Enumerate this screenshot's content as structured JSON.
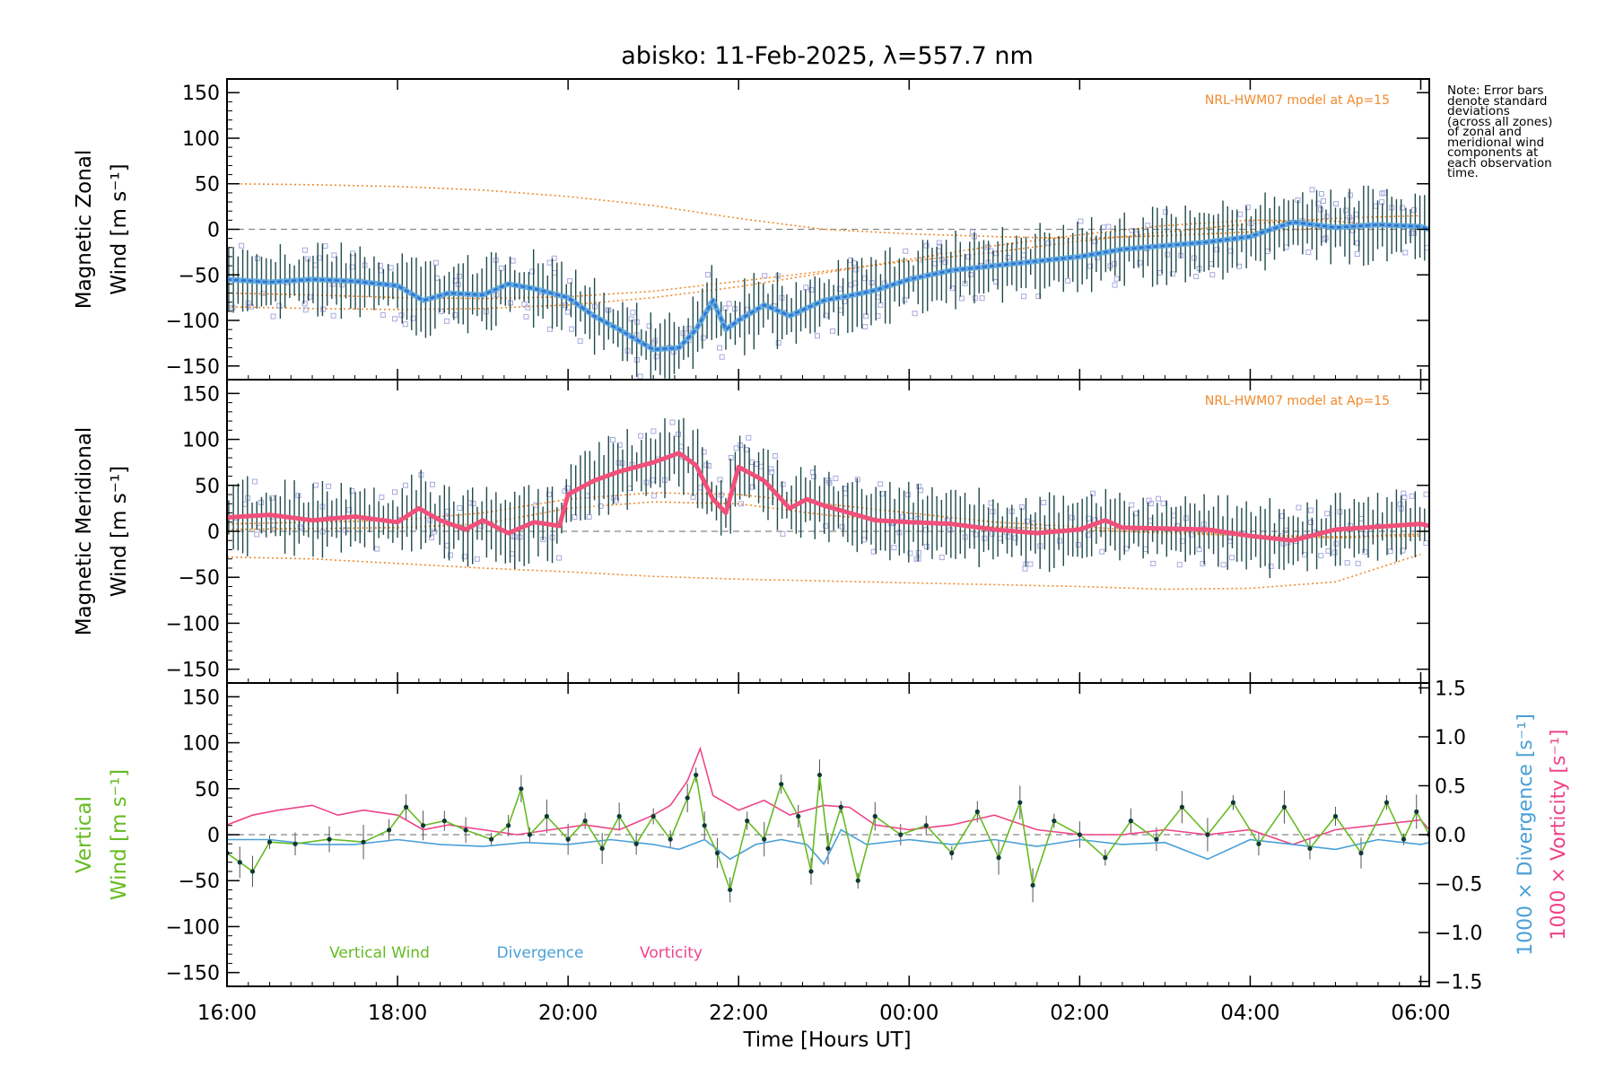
{
  "title": "abisko: 11-Feb-2025, λ=557.7 nm",
  "xlabel": "Time [Hours UT]",
  "x_ticks": [
    "16:00",
    "18:00",
    "20:00",
    "22:00",
    "00:00",
    "02:00",
    "04:00",
    "06:00"
  ],
  "model_label": "NRL-HWM07 model at Ap=15",
  "note_lines": [
    "Note: Error bars",
    "denote standard",
    "deviations",
    "(across all zones)",
    "of zonal and",
    "meridional wind",
    "components at",
    "each observation",
    "time."
  ],
  "colors": {
    "zonal_mean": "#2f6fd8",
    "zonal_band": "#5aa8dc",
    "meridional_mean": "#f0507a",
    "model": "#f08a2c",
    "errorbar": "#1e4a4a",
    "scatter": "#a8a8e0",
    "vertical": "#66bb22",
    "divergence": "#4aa0d8",
    "vorticity": "#ee4488",
    "points": "#103838"
  },
  "chart_data": [
    {
      "type": "line",
      "panel": "zonal",
      "ylabel_line1": "Magnetic Zonal",
      "ylabel_line2": "Wind [m s⁻¹]",
      "ylim": [
        -165,
        165
      ],
      "y_ticks": [
        150,
        100,
        50,
        0,
        -50,
        -100,
        -150
      ],
      "xlim_hours": [
        16,
        30.1
      ],
      "series": [
        {
          "role": "mean",
          "x": [
            16,
            16.5,
            17,
            17.5,
            18,
            18.3,
            18.6,
            19,
            19.3,
            19.6,
            20,
            20.3,
            20.6,
            21,
            21.3,
            21.5,
            21.7,
            21.85,
            22,
            22.3,
            22.6,
            23,
            23.3,
            23.6,
            24,
            24.5,
            25,
            25.5,
            26,
            26.5,
            27,
            27.5,
            28,
            28.5,
            29,
            29.5,
            30,
            30.1
          ],
          "values": [
            -55,
            -58,
            -55,
            -57,
            -62,
            -78,
            -70,
            -72,
            -60,
            -65,
            -75,
            -95,
            -110,
            -132,
            -130,
            -110,
            -78,
            -110,
            -100,
            -83,
            -95,
            -78,
            -73,
            -67,
            -55,
            -45,
            -40,
            -35,
            -30,
            -22,
            -18,
            -14,
            -8,
            8,
            2,
            5,
            3,
            0
          ]
        },
        {
          "role": "model",
          "x": [
            16,
            17,
            18,
            19,
            20,
            21,
            22,
            23,
            24,
            25,
            26,
            27,
            28,
            29,
            30
          ],
          "values": [
            50,
            49,
            47,
            43,
            36,
            26,
            12,
            0,
            -5,
            -8,
            -10,
            -7,
            -3,
            2,
            5
          ]
        },
        {
          "role": "model",
          "x": [
            16,
            17,
            18,
            19,
            20,
            21,
            22,
            23,
            24,
            25,
            26,
            27,
            28,
            29,
            30
          ],
          "values": [
            -70,
            -72,
            -75,
            -76,
            -74,
            -68,
            -57,
            -46,
            -35,
            -25,
            -13,
            -3,
            6,
            12,
            15
          ]
        },
        {
          "role": "model",
          "x": [
            16,
            17,
            18,
            19,
            20,
            21,
            22,
            23,
            24,
            25,
            26,
            27,
            28,
            29,
            30
          ],
          "values": [
            -85,
            -87,
            -88,
            -87,
            -83,
            -75,
            -63,
            -48,
            -33,
            -18,
            -6,
            4,
            10,
            9,
            0
          ]
        }
      ]
    },
    {
      "type": "line",
      "panel": "meridional",
      "ylabel_line1": "Magnetic Meridional",
      "ylabel_line2": "Wind [m s⁻¹]",
      "ylim": [
        -165,
        165
      ],
      "y_ticks": [
        150,
        100,
        50,
        0,
        -50,
        -100,
        -150
      ],
      "xlim_hours": [
        16,
        30.1
      ],
      "series": [
        {
          "role": "mean",
          "x": [
            16,
            16.5,
            17,
            17.5,
            18,
            18.25,
            18.5,
            18.8,
            19,
            19.3,
            19.6,
            19.9,
            20,
            20.3,
            20.6,
            21,
            21.3,
            21.5,
            21.7,
            21.85,
            22,
            22.3,
            22.6,
            22.8,
            23,
            23.3,
            23.6,
            24,
            24.5,
            25,
            25.5,
            26,
            26.3,
            26.5,
            27,
            27.5,
            28,
            28.5,
            29,
            29.5,
            30,
            30.1
          ],
          "values": [
            15,
            18,
            12,
            16,
            10,
            25,
            12,
            2,
            12,
            -2,
            10,
            6,
            40,
            55,
            65,
            75,
            85,
            72,
            35,
            20,
            70,
            55,
            25,
            35,
            28,
            20,
            12,
            10,
            8,
            2,
            -2,
            2,
            12,
            4,
            3,
            2,
            -5,
            -10,
            2,
            5,
            8,
            6
          ]
        },
        {
          "role": "model",
          "x": [
            16,
            17,
            18,
            19,
            20,
            21,
            22,
            23,
            24,
            25,
            26,
            27,
            28,
            29,
            30
          ],
          "values": [
            -28,
            -30,
            -35,
            -40,
            -44,
            -49,
            -52,
            -54,
            -56,
            -58,
            -60,
            -63,
            -62,
            -55,
            -25
          ]
        },
        {
          "role": "model",
          "x": [
            16,
            17,
            18,
            19,
            20,
            21,
            22,
            23,
            24,
            25,
            26,
            27,
            28,
            29,
            30
          ],
          "values": [
            2,
            3,
            4,
            8,
            25,
            32,
            30,
            18,
            10,
            5,
            2,
            -2,
            -5,
            -7,
            -5
          ]
        },
        {
          "role": "model",
          "x": [
            16,
            17,
            18,
            19,
            20,
            21,
            22,
            23,
            24,
            25,
            26,
            27,
            28,
            29,
            30
          ],
          "values": [
            8,
            10,
            12,
            20,
            35,
            42,
            40,
            30,
            20,
            10,
            5,
            0,
            -4,
            -6,
            -3
          ]
        }
      ]
    },
    {
      "type": "line",
      "panel": "vertical",
      "ylabel_line1": "Vertical",
      "ylabel_line2": "Wind [m s⁻¹]",
      "ylim": [
        -165,
        165
      ],
      "y_ticks": [
        150,
        100,
        50,
        0,
        -50,
        -100,
        -150
      ],
      "y2lim": [
        -1.55,
        1.55
      ],
      "y2_ticks": [
        1.5,
        1.0,
        0.5,
        0.0,
        -0.5,
        -1.0,
        -1.5
      ],
      "y2_ticklabels": [
        "1.5",
        "1.0",
        "0.5",
        "0.0",
        "−0.5",
        "−1.0",
        "−1.5"
      ],
      "y2label_1": "1000 × Divergence [s⁻¹]",
      "y2label_2": "1000 × Vorticity [s⁻¹]",
      "xlim_hours": [
        16,
        30.1
      ],
      "series": [
        {
          "name": "Vertical Wind",
          "axis": "left",
          "x": [
            16,
            16.15,
            16.3,
            16.5,
            16.8,
            17.2,
            17.6,
            17.9,
            18.1,
            18.3,
            18.55,
            18.8,
            19.1,
            19.3,
            19.45,
            19.55,
            19.75,
            20,
            20.2,
            20.4,
            20.6,
            20.8,
            21,
            21.2,
            21.4,
            21.5,
            21.6,
            21.75,
            21.9,
            22.1,
            22.3,
            22.5,
            22.7,
            22.85,
            22.95,
            23.05,
            23.2,
            23.4,
            23.6,
            23.9,
            24.2,
            24.5,
            24.8,
            25.05,
            25.3,
            25.45,
            25.7,
            26,
            26.3,
            26.6,
            26.9,
            27.2,
            27.5,
            27.8,
            28.1,
            28.4,
            28.7,
            29,
            29.3,
            29.6,
            29.8,
            29.95,
            30.1
          ],
          "values": [
            -20,
            -30,
            -40,
            -8,
            -10,
            -5,
            -8,
            5,
            30,
            10,
            15,
            5,
            -5,
            10,
            50,
            0,
            20,
            -5,
            15,
            -15,
            20,
            -10,
            20,
            -5,
            40,
            65,
            10,
            -20,
            -60,
            15,
            -5,
            55,
            20,
            -40,
            65,
            -15,
            30,
            -50,
            20,
            0,
            10,
            -20,
            25,
            -25,
            35,
            -55,
            15,
            0,
            -25,
            15,
            -5,
            30,
            0,
            35,
            -10,
            30,
            -15,
            20,
            -20,
            35,
            -5,
            25,
            0
          ]
        },
        {
          "name": "Divergence",
          "axis": "right",
          "x": [
            16,
            16.5,
            17,
            17.5,
            18,
            18.5,
            19,
            19.5,
            20,
            20.5,
            21,
            21.3,
            21.6,
            21.9,
            22.2,
            22.5,
            22.8,
            23,
            23.2,
            23.5,
            24,
            24.5,
            25,
            25.5,
            26,
            26.5,
            27,
            27.5,
            28,
            28.5,
            29,
            29.5,
            30,
            30.1
          ],
          "values": [
            -0.05,
            -0.05,
            -0.1,
            -0.1,
            -0.05,
            -0.1,
            -0.12,
            -0.08,
            -0.1,
            -0.05,
            -0.1,
            -0.15,
            -0.05,
            -0.25,
            -0.1,
            -0.05,
            -0.1,
            -0.3,
            0.05,
            -0.1,
            -0.05,
            -0.1,
            -0.05,
            -0.12,
            -0.05,
            -0.1,
            -0.08,
            -0.25,
            -0.05,
            -0.1,
            -0.15,
            -0.05,
            -0.1,
            -0.08
          ]
        },
        {
          "name": "Vorticity",
          "axis": "right",
          "x": [
            16,
            16.3,
            16.6,
            17,
            17.3,
            17.6,
            18,
            18.3,
            18.6,
            19,
            19.4,
            19.8,
            20.2,
            20.6,
            21,
            21.2,
            21.4,
            21.55,
            21.7,
            22,
            22.3,
            22.6,
            23,
            23.3,
            23.6,
            24,
            24.5,
            25,
            25.5,
            26,
            26.5,
            27,
            27.5,
            28,
            28.5,
            29,
            29.5,
            30,
            30.1
          ],
          "values": [
            0.1,
            0.2,
            0.25,
            0.3,
            0.2,
            0.25,
            0.2,
            0.05,
            0.1,
            0.05,
            0.0,
            0.05,
            0.1,
            0.05,
            0.2,
            0.3,
            0.55,
            0.88,
            0.4,
            0.25,
            0.35,
            0.2,
            0.3,
            0.28,
            0.1,
            0.05,
            0.1,
            0.2,
            0.05,
            0.0,
            0.0,
            0.05,
            0.0,
            0.05,
            -0.1,
            0.05,
            0.1,
            0.15,
            0.05
          ]
        }
      ]
    }
  ]
}
